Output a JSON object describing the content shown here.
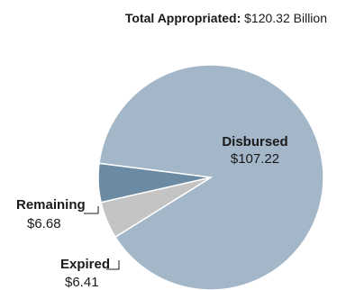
{
  "chart_data": {
    "type": "pie",
    "title_label": "Total Appropriated:",
    "title_value": "$120.32 Billion",
    "categories": [
      "Disbursed",
      "Remaining",
      "Expired"
    ],
    "values": [
      107.22,
      6.68,
      6.41
    ],
    "value_labels": [
      "$107.22",
      "$6.68",
      "$6.41"
    ],
    "colors": [
      "#a3b7c8",
      "#6a8ba3",
      "#c4c4c4"
    ]
  }
}
